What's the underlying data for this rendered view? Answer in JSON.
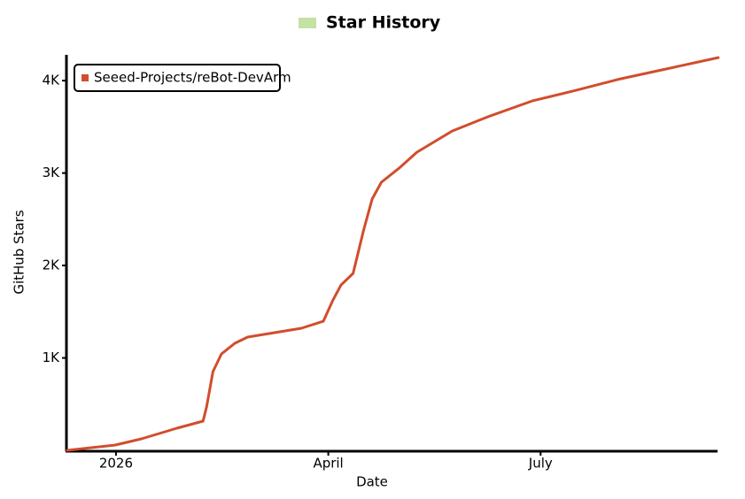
{
  "chart_data": {
    "type": "line",
    "title": "Star History",
    "x_label": "Date",
    "y_label": "GitHub Stars",
    "xlim": [
      -0.7,
      8.5
    ],
    "xticks": [
      {
        "value": 0,
        "label": "2026"
      },
      {
        "value": 3,
        "label": "April"
      },
      {
        "value": 6,
        "label": "July"
      }
    ],
    "ylim": [
      0,
      4250
    ],
    "yticks": [
      {
        "value": 1000,
        "label": "1K"
      },
      {
        "value": 2000,
        "label": "2K"
      },
      {
        "value": 3000,
        "label": "3K"
      },
      {
        "value": 4000,
        "label": "4K"
      }
    ],
    "legend": "top-left",
    "x": [
      -0.69,
      -0.01,
      0.36,
      0.86,
      1.23,
      1.28,
      1.37,
      1.49,
      1.68,
      1.86,
      2.24,
      2.62,
      2.93,
      3.06,
      3.18,
      3.35,
      3.5,
      3.62,
      3.75,
      4.0,
      4.25,
      4.75,
      5.25,
      5.88,
      6.5,
      7.13,
      7.88,
      8.51
    ],
    "series": [
      {
        "name": "Seeed-Projects/reBot-DevArm",
        "color": "#d14d2d",
        "values": [
          0,
          57,
          124,
          239,
          316,
          469,
          852,
          1043,
          1158,
          1225,
          1273,
          1321,
          1397,
          1617,
          1789,
          1914,
          2383,
          2718,
          2900,
          3053,
          3225,
          3455,
          3608,
          3780,
          3895,
          4019,
          4144,
          4249
        ]
      }
    ]
  }
}
